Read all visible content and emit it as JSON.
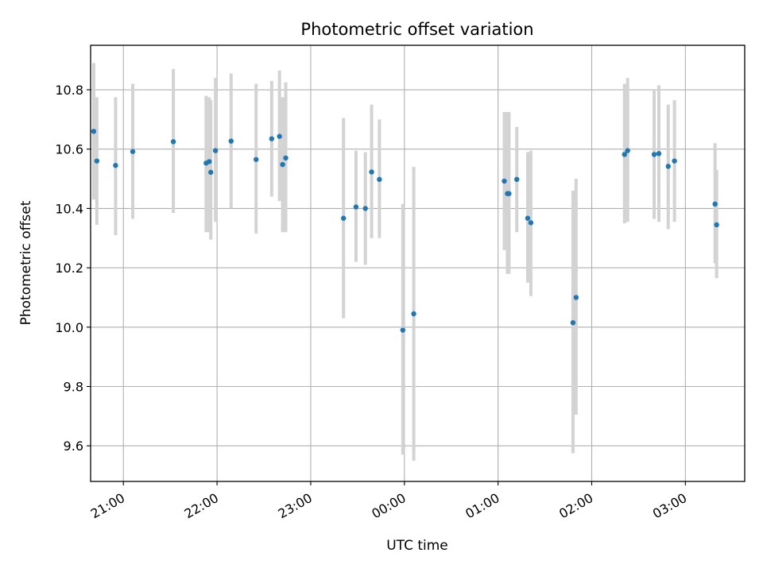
{
  "chart_data": {
    "type": "scatter",
    "title": "Photometric offset variation",
    "xlabel": "UTC time",
    "ylabel": "Photometric offset",
    "grid": true,
    "x_axis": {
      "kind": "time",
      "range": [
        "20:39",
        "03:38"
      ],
      "ticks": [
        "21:00",
        "22:00",
        "23:00",
        "00:00",
        "01:00",
        "02:00",
        "03:00"
      ],
      "tick_rotation_deg": 30
    },
    "y_axis": {
      "range": [
        9.48,
        10.95
      ],
      "ticks": [
        "9.6",
        "9.8",
        "10.0",
        "10.2",
        "10.4",
        "10.6",
        "10.8"
      ]
    },
    "colors": {
      "point": "#1f77b4",
      "errorbar": "#d3d3d3",
      "grid": "#b0b0b0"
    },
    "series": [
      {
        "x": [
          "20:41",
          "20:43",
          "20:55",
          "21:06",
          "21:32",
          "21:53",
          "21:55",
          "21:56",
          "21:59",
          "22:09",
          "22:25",
          "22:35",
          "22:40",
          "22:42",
          "22:44",
          "23:21",
          "23:29",
          "23:35",
          "23:39",
          "23:44",
          "23:59",
          "00:06",
          "01:04",
          "01:06",
          "01:07",
          "01:12",
          "01:19",
          "01:21",
          "01:48",
          "01:50",
          "02:21",
          "02:23",
          "02:40",
          "02:43",
          "02:49",
          "02:53",
          "03:19",
          "03:20"
        ],
        "y": [
          10.66,
          10.56,
          10.545,
          10.592,
          10.625,
          10.553,
          10.558,
          10.522,
          10.595,
          10.627,
          10.565,
          10.635,
          10.643,
          10.548,
          10.57,
          10.367,
          10.405,
          10.4,
          10.523,
          10.498,
          9.99,
          10.045,
          10.492,
          10.45,
          10.45,
          10.498,
          10.367,
          10.352,
          10.015,
          10.1,
          10.582,
          10.595,
          10.582,
          10.585,
          10.542,
          10.56,
          10.415,
          10.345
        ],
        "err_low": [
          10.43,
          10.345,
          10.31,
          10.365,
          10.385,
          10.32,
          10.32,
          10.295,
          10.355,
          10.4,
          10.315,
          10.44,
          10.425,
          10.32,
          10.32,
          10.03,
          10.22,
          10.21,
          10.3,
          10.3,
          9.57,
          9.55,
          10.26,
          10.18,
          10.18,
          10.32,
          10.15,
          10.105,
          9.575,
          9.705,
          10.35,
          10.355,
          10.365,
          10.355,
          10.33,
          10.355,
          10.215,
          10.165
        ],
        "err_high": [
          10.89,
          10.775,
          10.775,
          10.82,
          10.87,
          10.78,
          10.775,
          10.765,
          10.84,
          10.855,
          10.82,
          10.83,
          10.865,
          10.775,
          10.825,
          10.705,
          10.595,
          10.59,
          10.75,
          10.7,
          10.415,
          10.54,
          10.725,
          10.725,
          10.725,
          10.675,
          10.59,
          10.595,
          10.46,
          10.5,
          10.82,
          10.84,
          10.8,
          10.815,
          10.75,
          10.765,
          10.62,
          10.53
        ]
      }
    ]
  }
}
